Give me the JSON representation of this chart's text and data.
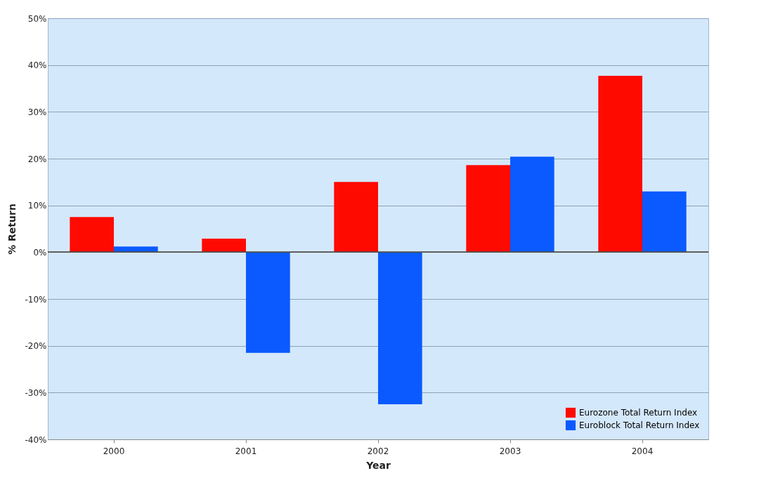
{
  "chart_data": {
    "type": "bar",
    "xlabel": "Year",
    "ylabel": "% Return",
    "categories": [
      "2000",
      "2001",
      "2002",
      "2003",
      "2004"
    ],
    "series": [
      {
        "name": "Eurozone Total Return Index",
        "color": "#ff0a00",
        "values": [
          7.5,
          2.9,
          15.0,
          18.6,
          37.7
        ]
      },
      {
        "name": "Euroblock Total Return Index",
        "color": "#0a5aff",
        "values": [
          1.2,
          -21.5,
          -32.5,
          20.4,
          13.0
        ]
      }
    ],
    "ylim": [
      -40,
      50
    ],
    "yticks": [
      {
        "value": -40,
        "label": "-40%"
      },
      {
        "value": -30,
        "label": "-30%"
      },
      {
        "value": -20,
        "label": "-20%"
      },
      {
        "value": -10,
        "label": "-10%"
      },
      {
        "value": 0,
        "label": "0%"
      },
      {
        "value": 10,
        "label": "10%"
      },
      {
        "value": 20,
        "label": "20%"
      },
      {
        "value": 30,
        "label": "30%"
      },
      {
        "value": 40,
        "label": "40%"
      },
      {
        "value": 50,
        "label": "50%"
      }
    ],
    "grid": "y",
    "legend": "bottom right"
  }
}
